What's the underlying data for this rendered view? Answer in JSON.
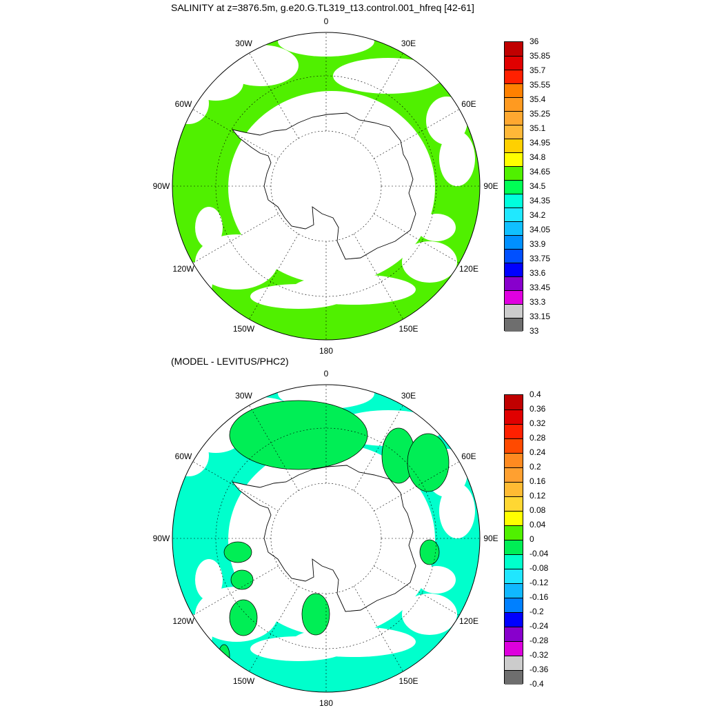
{
  "panels": [
    {
      "title": "SALINITY at z=3876.5m, g.e20.G.TL319_t13.control.001_hfreq [42-61]",
      "lon_labels": [
        "0",
        "30E",
        "60E",
        "90E",
        "120E",
        "150E",
        "180",
        "150W",
        "120W",
        "90W",
        "60W",
        "30W"
      ],
      "colorbar": {
        "labels": [
          "36",
          "35.85",
          "35.7",
          "35.55",
          "35.4",
          "35.25",
          "35.1",
          "34.95",
          "34.8",
          "34.65",
          "34.5",
          "34.35",
          "34.2",
          "34.05",
          "33.9",
          "33.75",
          "33.6",
          "33.45",
          "33.3",
          "33.15",
          "33"
        ],
        "colors": [
          "#c00000",
          "#e00000",
          "#ff2000",
          "#ff8000",
          "#ff9a20",
          "#ffa830",
          "#ffb838",
          "#ffd000",
          "#ffff00",
          "#50f000",
          "#00ff55",
          "#00ffdd",
          "#20e8ff",
          "#10c0ff",
          "#0090ff",
          "#0050ff",
          "#0000ff",
          "#8800cc",
          "#e000e0",
          "#cccccc",
          "#6e6e6e"
        ]
      },
      "field_color": "#50f000"
    },
    {
      "title": "(MODEL - LEVITUS/PHC2)",
      "lon_labels": [
        "0",
        "30E",
        "60E",
        "90E",
        "120E",
        "150E",
        "180",
        "150W",
        "120W",
        "90W",
        "60W",
        "30W"
      ],
      "colorbar": {
        "labels": [
          "0.4",
          "0.36",
          "0.32",
          "0.28",
          "0.24",
          "0.2",
          "0.16",
          "0.12",
          "0.08",
          "0.04",
          "0",
          "-0.04",
          "-0.08",
          "-0.12",
          "-0.16",
          "-0.2",
          "-0.24",
          "-0.28",
          "-0.32",
          "-0.36",
          "-0.4"
        ],
        "colors": [
          "#c00000",
          "#e00000",
          "#ff2000",
          "#ff4a00",
          "#ff8a20",
          "#ffa030",
          "#ffbb33",
          "#ffd733",
          "#ffff00",
          "#50f000",
          "#00ee55",
          "#00ffcc",
          "#20e6ff",
          "#10b8ff",
          "#0080ff",
          "#0000ff",
          "#8800cc",
          "#dd00dd",
          "#cccccc",
          "#6e6e6e"
        ]
      },
      "field_color": "#00ffcc",
      "positive_color": "#00ee55"
    }
  ]
}
